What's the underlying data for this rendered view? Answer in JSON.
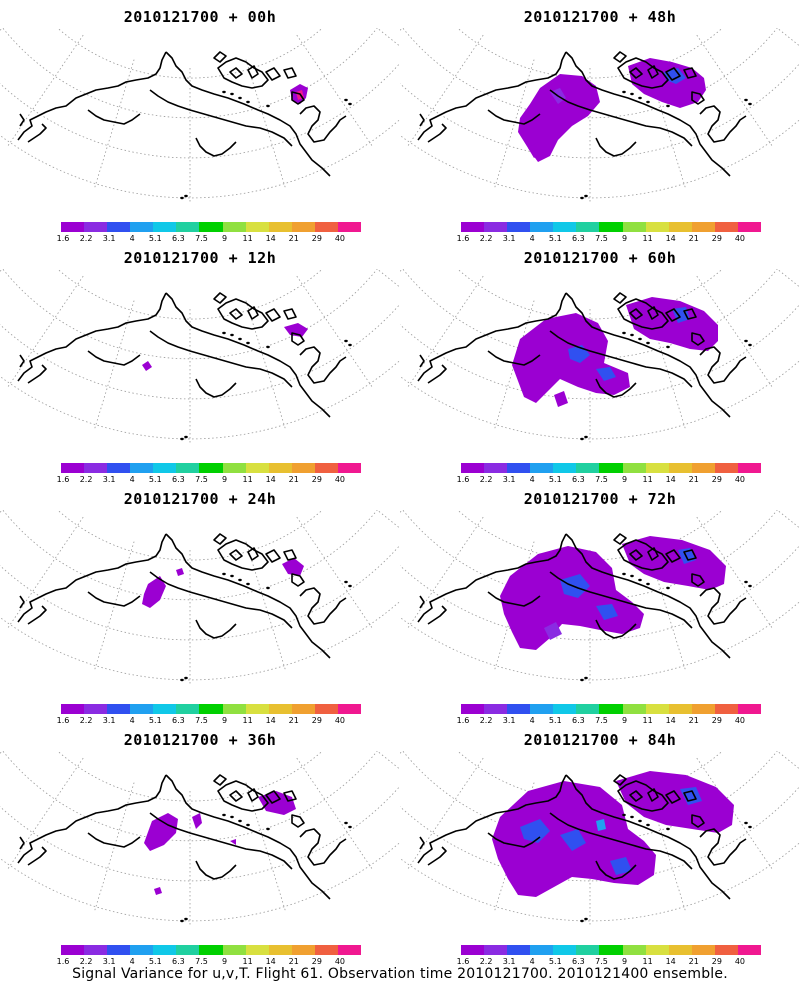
{
  "panels": [
    {
      "title": "2010121700 + 00h",
      "signal": "00"
    },
    {
      "title": "2010121700 + 48h",
      "signal": "48"
    },
    {
      "title": "2010121700 + 12h",
      "signal": "12"
    },
    {
      "title": "2010121700 + 60h",
      "signal": "60"
    },
    {
      "title": "2010121700 + 24h",
      "signal": "24"
    },
    {
      "title": "2010121700 + 72h",
      "signal": "72"
    },
    {
      "title": "2010121700 + 36h",
      "signal": "36"
    },
    {
      "title": "2010121700 + 84h",
      "signal": "84"
    }
  ],
  "colorbar": {
    "labels": [
      "1.6",
      "2.2",
      "3.1",
      "4",
      "5.1",
      "6.3",
      "7.5",
      "9",
      "11",
      "14",
      "21",
      "29",
      "40"
    ],
    "colors": [
      "#9b00d2",
      "#8a2be2",
      "#3050f0",
      "#20a0f0",
      "#10c8e8",
      "#20d0a0",
      "#00d000",
      "#90e040",
      "#d8e040",
      "#e8c030",
      "#f0a030",
      "#f06040",
      "#f01890"
    ]
  },
  "footer": "Signal Variance for u,v,T. Flight 61. Observation time 2010121700. 2010121400 ensemble."
}
